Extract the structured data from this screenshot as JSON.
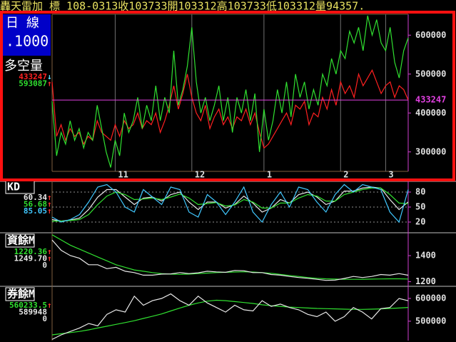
{
  "header": "轟天雷加 標 108-0313收103733開103312高103733低103312量94357.",
  "chart_data": [
    {
      "type": "line",
      "period": "日 線",
      "scale": ".1000",
      "title": "多空量",
      "xlim": [
        0,
        79
      ],
      "xticks": [
        {
          "value": 14,
          "label": "11"
        },
        {
          "value": 31,
          "label": "12"
        },
        {
          "value": 47,
          "label": "1"
        },
        {
          "value": 64,
          "label": "2"
        },
        {
          "value": 74,
          "label": "3"
        }
      ],
      "ylim": [
        250000,
        650000
      ],
      "yticks": [
        300000,
        400000,
        500000,
        600000
      ],
      "grid": "x",
      "series": [
        {
          "color": "#ff2020",
          "label": "433247",
          "marker": "↓",
          "values": [
            480000,
            340000,
            370000,
            330000,
            360000,
            340000,
            350000,
            320000,
            340000,
            330000,
            380000,
            350000,
            340000,
            330000,
            370000,
            340000,
            380000,
            360000,
            370000,
            400000,
            360000,
            380000,
            370000,
            400000,
            350000,
            380000,
            420000,
            470000,
            410000,
            450000,
            500000,
            440000,
            400000,
            380000,
            420000,
            360000,
            390000,
            410000,
            370000,
            390000,
            360000,
            390000,
            380000,
            410000,
            370000,
            400000,
            350000,
            310000,
            320000,
            340000,
            360000,
            380000,
            400000,
            370000,
            420000,
            410000,
            430000,
            370000,
            400000,
            390000,
            440000,
            410000,
            460000,
            420000,
            480000,
            450000,
            470000,
            440000,
            500000,
            470000,
            490000,
            510000,
            480000,
            450000,
            470000,
            480000,
            440000,
            470000,
            460000,
            433247
          ]
        },
        {
          "color": "#30e030",
          "label": "593087",
          "marker": "↑",
          "values": [
            430000,
            290000,
            350000,
            320000,
            380000,
            330000,
            360000,
            310000,
            350000,
            330000,
            420000,
            360000,
            300000,
            260000,
            330000,
            290000,
            400000,
            350000,
            380000,
            440000,
            360000,
            420000,
            380000,
            470000,
            380000,
            440000,
            400000,
            560000,
            420000,
            460000,
            520000,
            620000,
            480000,
            400000,
            440000,
            380000,
            420000,
            470000,
            380000,
            440000,
            350000,
            440000,
            400000,
            460000,
            380000,
            450000,
            300000,
            410000,
            330000,
            380000,
            460000,
            400000,
            480000,
            390000,
            500000,
            440000,
            480000,
            410000,
            460000,
            420000,
            500000,
            470000,
            540000,
            500000,
            560000,
            540000,
            610000,
            580000,
            620000,
            560000,
            650000,
            600000,
            640000,
            580000,
            560000,
            620000,
            530000,
            490000,
            560000,
            593087
          ]
        }
      ]
    },
    {
      "type": "line",
      "title": "KD",
      "xlim": [
        0,
        39
      ],
      "ylim": [
        0,
        100
      ],
      "yticks": [
        20,
        50,
        80
      ],
      "grid": "y",
      "series": [
        {
          "color": "#e8e8e8",
          "label": "60.34",
          "marker": "↑",
          "values": [
            25,
            22,
            24,
            28,
            45,
            70,
            85,
            85,
            70,
            55,
            68,
            70,
            62,
            75,
            80,
            60,
            45,
            60,
            60,
            48,
            55,
            72,
            58,
            40,
            48,
            65,
            58,
            75,
            80,
            70,
            55,
            62,
            82,
            82,
            88,
            90,
            88,
            65,
            45,
            60.34
          ]
        },
        {
          "color": "#30e030",
          "label": "56.68",
          "marker": "↑",
          "values": [
            22,
            22,
            23,
            25,
            35,
            55,
            72,
            80,
            75,
            65,
            66,
            68,
            65,
            70,
            76,
            68,
            55,
            57,
            59,
            52,
            54,
            65,
            60,
            48,
            48,
            58,
            58,
            68,
            75,
            72,
            62,
            62,
            75,
            80,
            85,
            88,
            88,
            75,
            58,
            56.68
          ]
        },
        {
          "color": "#40c8ff",
          "label": "85.05",
          "marker": "↑",
          "values": [
            30,
            20,
            25,
            35,
            60,
            90,
            95,
            80,
            50,
            40,
            85,
            70,
            55,
            90,
            85,
            40,
            30,
            75,
            60,
            35,
            60,
            90,
            40,
            20,
            55,
            80,
            50,
            90,
            85,
            60,
            40,
            75,
            95,
            80,
            95,
            90,
            85,
            40,
            20,
            85.05
          ]
        }
      ]
    },
    {
      "type": "line",
      "title": "資餘M",
      "sub_label": "0",
      "xlim": [
        0,
        39
      ],
      "ylim": [
        1170,
        1570
      ],
      "yticks": [
        1200,
        1400
      ],
      "grid": "none",
      "series": [
        {
          "color": "#30e030",
          "label": "1220.36",
          "marker": "↑",
          "values": [
            1560,
            1520,
            1480,
            1450,
            1420,
            1390,
            1360,
            1330,
            1310,
            1290,
            1280,
            1270,
            1262,
            1258,
            1256,
            1258,
            1262,
            1266,
            1270,
            1272,
            1274,
            1276,
            1274,
            1270,
            1264,
            1256,
            1248,
            1240,
            1232,
            1226,
            1222,
            1220,
            1218,
            1218,
            1219,
            1220,
            1221,
            1222,
            1222,
            1220.36
          ]
        },
        {
          "color": "#e8e8e8",
          "label": "1249.70",
          "marker": "↑",
          "values": [
            1520,
            1440,
            1400,
            1380,
            1330,
            1330,
            1300,
            1310,
            1280,
            1270,
            1250,
            1250,
            1258,
            1260,
            1270,
            1262,
            1268,
            1280,
            1275,
            1272,
            1286,
            1284,
            1270,
            1270,
            1255,
            1250,
            1240,
            1232,
            1226,
            1218,
            1210,
            1212,
            1225,
            1240,
            1232,
            1240,
            1255,
            1250,
            1262,
            1249.7
          ]
        }
      ]
    },
    {
      "type": "line",
      "title": "券餘M",
      "sub_label": "0",
      "xlim": [
        0,
        39
      ],
      "ylim": [
        415000,
        650000
      ],
      "yticks": [
        500000,
        600000
      ],
      "grid": "none",
      "series": [
        {
          "color": "#30e030",
          "label": "560233.5",
          "marker": "↑",
          "values": [
            440000,
            445000,
            450000,
            455000,
            462000,
            470000,
            478000,
            486000,
            494000,
            502000,
            512000,
            522000,
            532000,
            545000,
            558000,
            570000,
            580000,
            588000,
            592000,
            590000,
            586000,
            582000,
            578000,
            572000,
            568000,
            565000,
            562000,
            560000,
            558000,
            556000,
            555000,
            554000,
            553000,
            552000,
            552000,
            553000,
            554000,
            556000,
            558000,
            560233.5
          ]
        },
        {
          "color": "#e8e8e8",
          "label": "589948",
          "values": [
            420000,
            440000,
            455000,
            470000,
            490000,
            480000,
            530000,
            550000,
            540000,
            610000,
            570000,
            590000,
            600000,
            620000,
            590000,
            570000,
            610000,
            580000,
            560000,
            540000,
            570000,
            550000,
            545000,
            590000,
            565000,
            575000,
            560000,
            550000,
            530000,
            520000,
            540000,
            500000,
            520000,
            560000,
            540000,
            510000,
            555000,
            560000,
            600000,
            589948
          ]
        }
      ]
    }
  ]
}
